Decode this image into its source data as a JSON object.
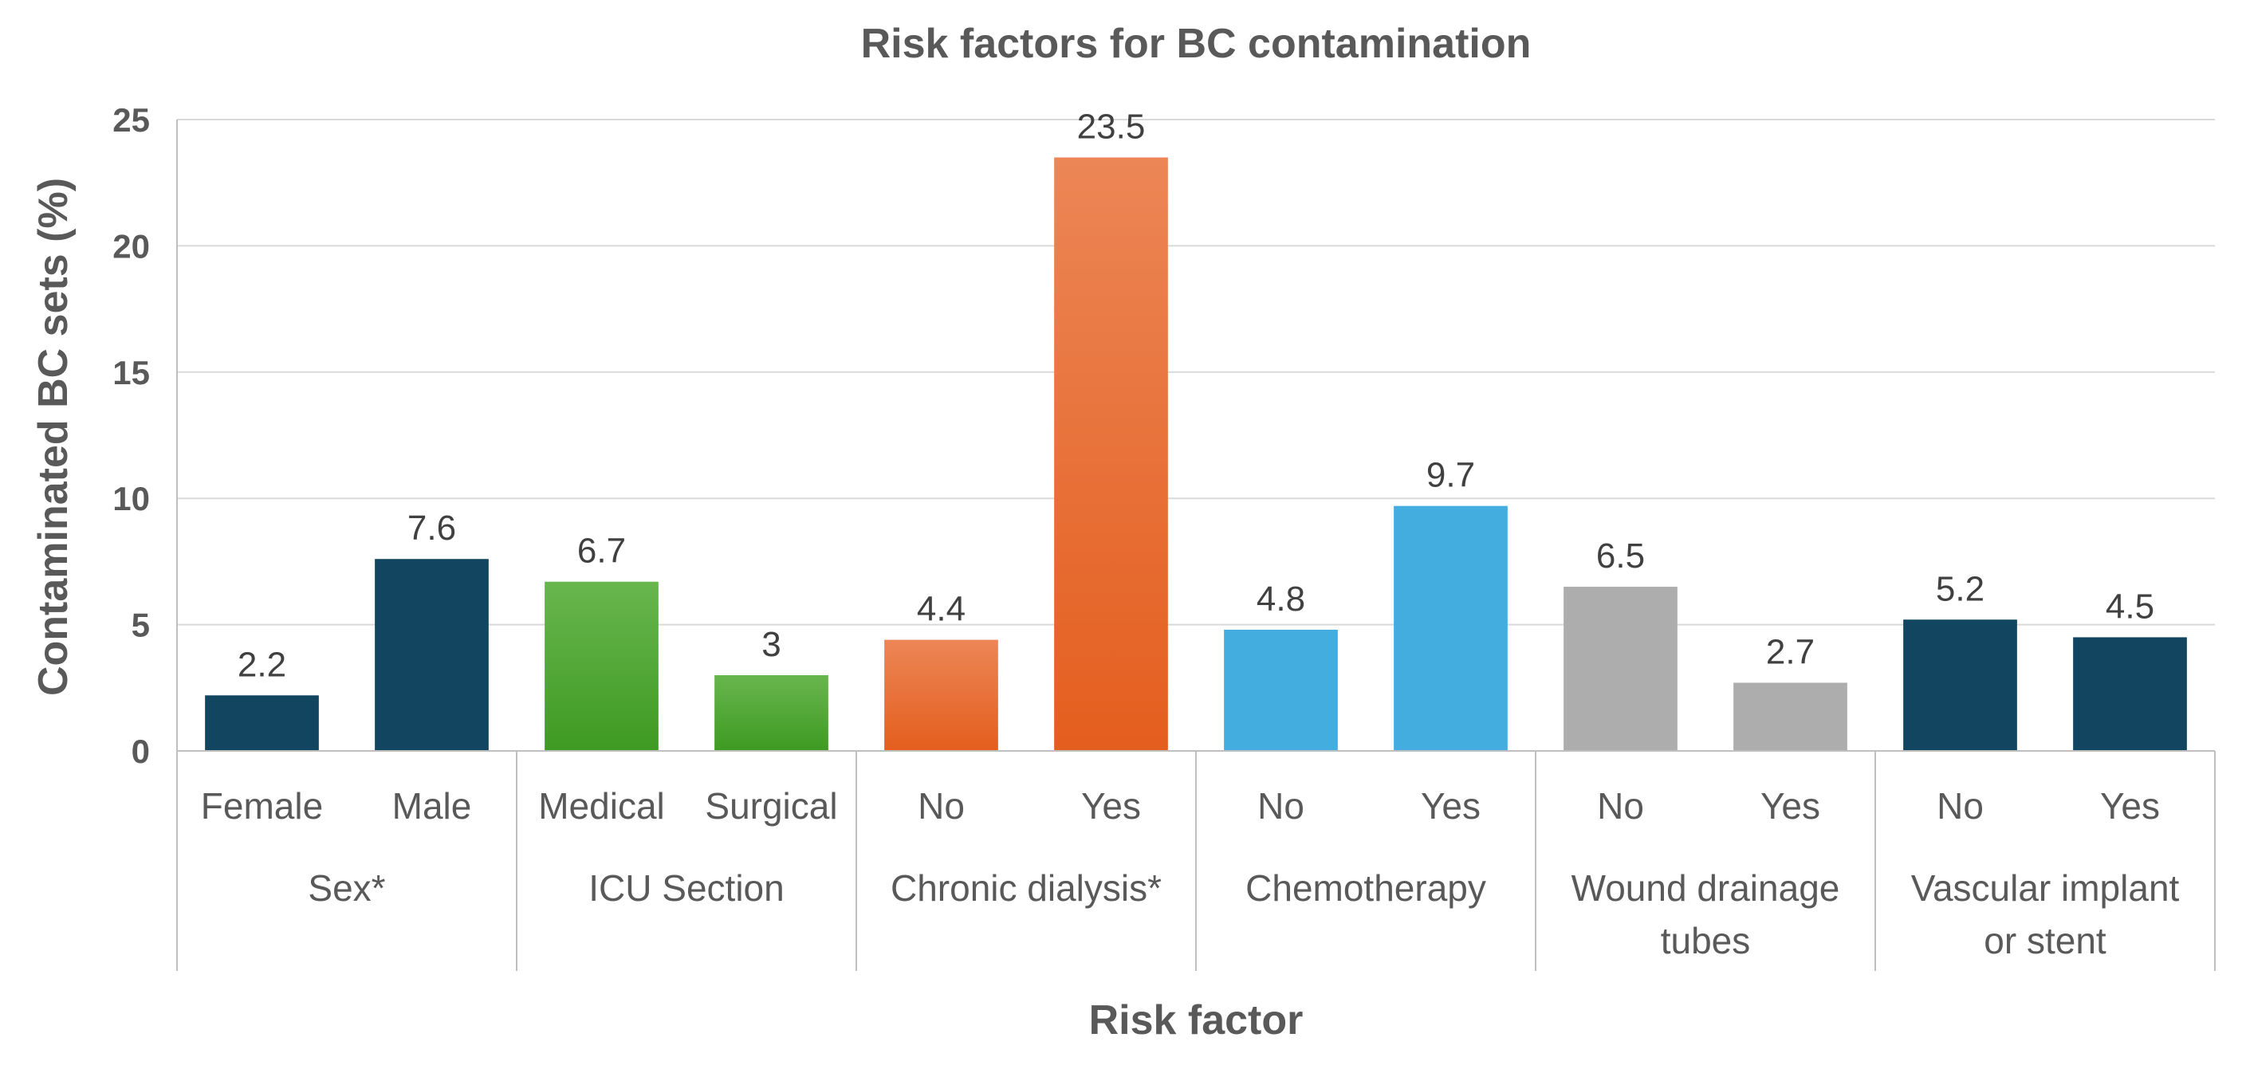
{
  "chart_data": {
    "type": "bar",
    "title": "Risk factors for BC contamination",
    "xlabel": "Risk factor",
    "ylabel": "Contaminated BC sets (%)",
    "ylim": [
      0,
      25
    ],
    "yticks": [
      0,
      5,
      10,
      15,
      20,
      25
    ],
    "grid": true,
    "groups": [
      {
        "name": "Sex*",
        "name_lines": [
          "Sex*"
        ],
        "color": "#124660",
        "gradient": null,
        "categories": [
          "Female",
          "Male"
        ],
        "values": [
          2.2,
          7.6
        ],
        "value_labels": [
          "2.2",
          "7.6"
        ]
      },
      {
        "name": "ICU Section",
        "name_lines": [
          "ICU Section"
        ],
        "color": "#4aa230",
        "gradient": [
          "#68b64e",
          "#3e9a22"
        ],
        "categories": [
          "Medical",
          "Surgical"
        ],
        "values": [
          6.7,
          3
        ],
        "value_labels": [
          "6.7",
          "3"
        ]
      },
      {
        "name": "Chronic dialysis*",
        "name_lines": [
          "Chronic dialysis*"
        ],
        "color": "#ee6a28",
        "gradient": [
          "#ec8656",
          "#e45e1e"
        ],
        "categories": [
          "No",
          "Yes"
        ],
        "values": [
          4.4,
          23.5
        ],
        "value_labels": [
          "4.4",
          "23.5"
        ]
      },
      {
        "name": "Chemotherapy",
        "name_lines": [
          "Chemotherapy"
        ],
        "color": "#44ade0",
        "gradient": null,
        "categories": [
          "No",
          "Yes"
        ],
        "values": [
          4.8,
          9.7
        ],
        "value_labels": [
          "4.8",
          "9.7"
        ]
      },
      {
        "name": "Wound drainage tubes",
        "name_lines": [
          "Wound drainage",
          "tubes"
        ],
        "color": "#adadad",
        "gradient": null,
        "categories": [
          "No",
          "Yes"
        ],
        "values": [
          6.5,
          2.7
        ],
        "value_labels": [
          "6.5",
          "2.7"
        ]
      },
      {
        "name": "Vascular implant or stent",
        "name_lines": [
          "Vascular implant",
          "or stent"
        ],
        "color": "#124660",
        "gradient": null,
        "categories": [
          "No",
          "Yes"
        ],
        "values": [
          5.2,
          4.5
        ],
        "value_labels": [
          "5.2",
          "4.5"
        ]
      }
    ]
  }
}
